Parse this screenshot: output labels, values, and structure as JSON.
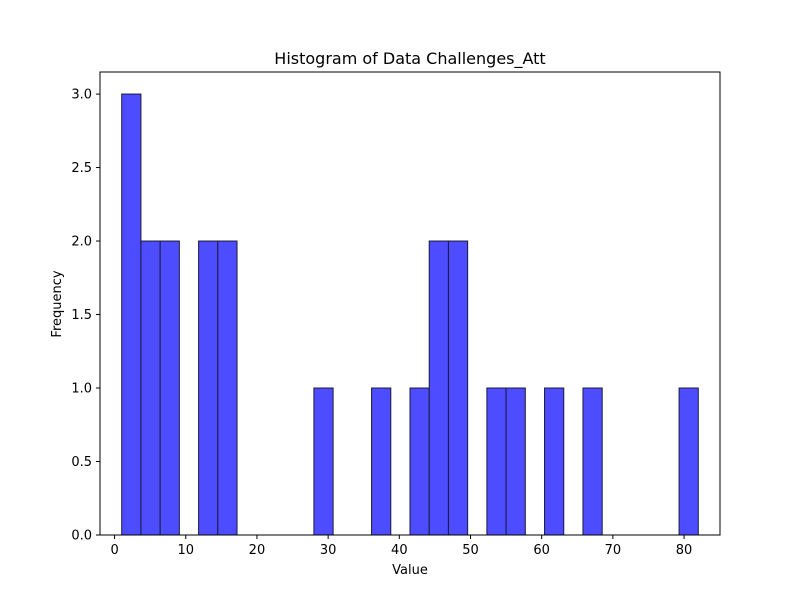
{
  "chart_data": {
    "type": "bar",
    "title": "Histogram of Data Challenges_Att",
    "xlabel": "Value",
    "ylabel": "Frequency",
    "xlim": [
      -2.05,
      85.05
    ],
    "ylim": [
      0,
      3.15
    ],
    "bin_width": 2.7,
    "bins": [
      {
        "start": 1.0,
        "count": 3
      },
      {
        "start": 3.7,
        "count": 2
      },
      {
        "start": 6.4,
        "count": 2
      },
      {
        "start": 11.8,
        "count": 2
      },
      {
        "start": 14.5,
        "count": 2
      },
      {
        "start": 28.0,
        "count": 1
      },
      {
        "start": 36.1,
        "count": 1
      },
      {
        "start": 41.5,
        "count": 1
      },
      {
        "start": 44.2,
        "count": 2
      },
      {
        "start": 46.9,
        "count": 2
      },
      {
        "start": 52.3,
        "count": 1
      },
      {
        "start": 55.0,
        "count": 1
      },
      {
        "start": 60.4,
        "count": 1
      },
      {
        "start": 65.8,
        "count": 1
      },
      {
        "start": 79.3,
        "count": 1
      }
    ],
    "x_ticks": [
      0,
      10,
      20,
      30,
      40,
      50,
      60,
      70,
      80
    ],
    "x_tick_labels": [
      "0",
      "10",
      "20",
      "30",
      "40",
      "50",
      "60",
      "70",
      "80"
    ],
    "y_ticks": [
      0,
      0.5,
      1.0,
      1.5,
      2.0,
      2.5,
      3.0
    ],
    "y_tick_labels": [
      "0.0",
      "0.5",
      "1.0",
      "1.5",
      "2.0",
      "2.5",
      "3.0"
    ],
    "bar_color": "#4d4dff",
    "edge_color": "#1a1a3a",
    "grid": false,
    "legend": "none"
  }
}
